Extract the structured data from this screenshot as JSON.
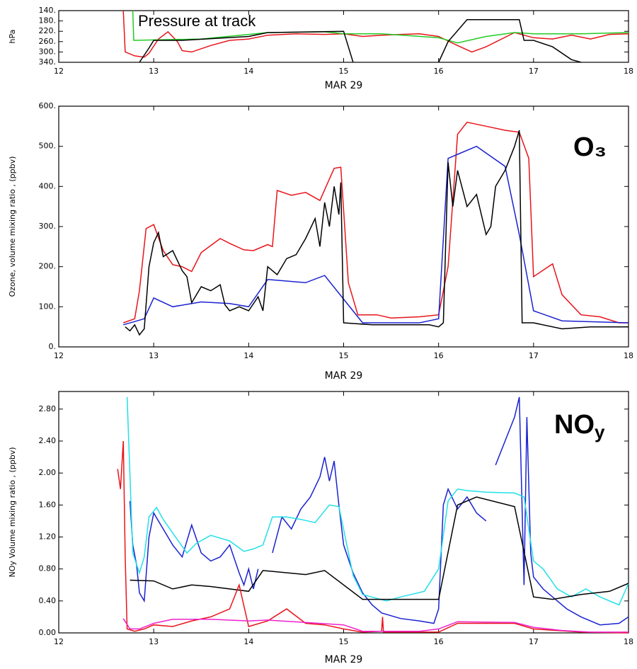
{
  "chart_data": [
    {
      "type": "line",
      "ylabel": "hPa",
      "xlabel": "MAR 29",
      "annotation": "Pressure at track",
      "xlim": [
        12,
        18
      ],
      "xticks": [
        12,
        13,
        14,
        15,
        16,
        17,
        18
      ],
      "ylim": [
        340,
        140
      ],
      "yticks": [
        {
          "value": 140,
          "label": "140."
        },
        {
          "value": 180,
          "label": "180."
        },
        {
          "value": 220,
          "label": "220."
        },
        {
          "value": 260,
          "label": "260."
        },
        {
          "value": 300,
          "label": "300."
        },
        {
          "value": 340,
          "label": "340."
        }
      ],
      "series": [
        {
          "color": "#e8141a",
          "x": [
            12.68,
            12.7,
            12.8,
            12.9,
            12.95,
            13.05,
            13.15,
            13.25,
            13.3,
            13.4,
            13.6,
            13.8,
            14.0,
            14.2,
            14.5,
            14.8,
            15.0,
            15.2,
            15.4,
            15.6,
            15.8,
            16.0,
            16.2,
            16.35,
            16.5,
            16.8,
            17.0,
            17.2,
            17.4,
            17.6,
            17.8,
            18.0
          ],
          "values": [
            140,
            300,
            315,
            320,
            305,
            250,
            222,
            260,
            295,
            300,
            275,
            255,
            250,
            235,
            230,
            232,
            230,
            240,
            235,
            232,
            230,
            240,
            275,
            300,
            280,
            225,
            245,
            250,
            235,
            250,
            232,
            230
          ]
        },
        {
          "color": "#22cc22",
          "x": [
            12.78,
            12.79,
            13.5,
            14.2,
            14.8,
            15.0,
            15.4,
            16.0,
            16.2,
            16.5,
            16.8,
            17.0,
            17.5,
            18.0
          ],
          "values": [
            140,
            255,
            250,
            225,
            222,
            230,
            230,
            245,
            265,
            240,
            225,
            230,
            230,
            225
          ]
        },
        {
          "color": "#000000",
          "x": [
            12.85,
            12.95,
            13.0,
            13.3,
            14.0,
            14.2,
            15.0,
            15.1,
            15.5,
            16.0,
            16.1,
            16.3,
            16.85,
            16.9,
            17.0,
            17.2,
            17.4,
            17.5
          ],
          "values": [
            340,
            285,
            255,
            255,
            240,
            225,
            220,
            340,
            null,
            340,
            260,
            175,
            175,
            255,
            255,
            280,
            330,
            340
          ]
        }
      ]
    },
    {
      "type": "line",
      "ylabel": "Ozone, volume mixing ratio , (ppbv)",
      "xlabel": "MAR 29",
      "annotation": "O₃",
      "xlim": [
        12,
        18
      ],
      "xticks": [
        12,
        13,
        14,
        15,
        16,
        17,
        18
      ],
      "ylim": [
        0,
        600
      ],
      "yticks": [
        {
          "value": 0,
          "label": "0."
        },
        {
          "value": 100,
          "label": "100."
        },
        {
          "value": 200,
          "label": "200."
        },
        {
          "value": 300,
          "label": "300."
        },
        {
          "value": 400,
          "label": "400."
        },
        {
          "value": 500,
          "label": "500."
        },
        {
          "value": 600,
          "label": "600."
        }
      ],
      "series": [
        {
          "color": "#e8141a",
          "x": [
            12.68,
            12.8,
            12.85,
            12.92,
            13.0,
            13.1,
            13.2,
            13.3,
            13.4,
            13.5,
            13.7,
            13.8,
            13.95,
            14.05,
            14.2,
            14.25,
            14.3,
            14.45,
            14.6,
            14.75,
            14.9,
            14.97,
            15.05,
            15.15,
            15.35,
            15.5,
            15.8,
            16.0,
            16.1,
            16.2,
            16.3,
            16.5,
            16.7,
            16.85,
            16.95,
            17.0,
            17.2,
            17.3,
            17.5,
            17.7,
            17.9,
            18.0
          ],
          "values": [
            60,
            70,
            140,
            295,
            305,
            240,
            205,
            200,
            188,
            235,
            270,
            258,
            242,
            240,
            255,
            250,
            390,
            378,
            385,
            365,
            445,
            448,
            160,
            80,
            80,
            72,
            75,
            80,
            200,
            530,
            560,
            550,
            540,
            535,
            470,
            175,
            207,
            130,
            80,
            75,
            60,
            60
          ]
        },
        {
          "color": "#1a22d0",
          "x": [
            12.68,
            12.9,
            13.0,
            13.2,
            13.5,
            13.8,
            14.0,
            14.2,
            14.6,
            14.8,
            15.2,
            15.8,
            16.0,
            16.1,
            16.2,
            16.4,
            16.7,
            16.85,
            17.0,
            17.3,
            18.0
          ],
          "values": [
            55,
            70,
            122,
            100,
            112,
            108,
            100,
            168,
            160,
            178,
            60,
            60,
            70,
            470,
            480,
            500,
            450,
            280,
            90,
            65,
            60
          ]
        },
        {
          "color": "#000000",
          "x": [
            12.7,
            12.75,
            12.8,
            12.85,
            12.9,
            12.95,
            13.0,
            13.05,
            13.1,
            13.2,
            13.3,
            13.35,
            13.4,
            13.5,
            13.6,
            13.7,
            13.75,
            13.8,
            13.9,
            14.0,
            14.1,
            14.15,
            14.2,
            14.3,
            14.4,
            14.5,
            14.6,
            14.7,
            14.75,
            14.8,
            14.85,
            14.9,
            14.95,
            14.97,
            15.0,
            15.3,
            15.6,
            15.9,
            16.0,
            16.05,
            16.1,
            16.15,
            16.2,
            16.3,
            16.4,
            16.5,
            16.55,
            16.6,
            16.7,
            16.8,
            16.85,
            16.88,
            17.0,
            17.3,
            17.6,
            18.0
          ],
          "values": [
            50,
            40,
            55,
            30,
            45,
            200,
            260,
            285,
            225,
            240,
            190,
            175,
            110,
            150,
            140,
            155,
            105,
            90,
            100,
            90,
            125,
            90,
            200,
            180,
            220,
            230,
            270,
            320,
            250,
            360,
            300,
            400,
            330,
            410,
            60,
            55,
            55,
            55,
            50,
            60,
            460,
            350,
            440,
            350,
            380,
            280,
            300,
            400,
            440,
            500,
            540,
            60,
            60,
            45,
            50,
            50
          ]
        }
      ]
    },
    {
      "type": "line",
      "ylabel": "NOy Volume mixing ratio , (ppbv)",
      "xlabel": "MAR 29",
      "annotation": {
        "text": "NO",
        "subscript": "y"
      },
      "xlim": [
        12,
        18
      ],
      "xticks": [
        12,
        13,
        14,
        15,
        16,
        17,
        18
      ],
      "ylim": [
        0,
        3.02
      ],
      "yticks": [
        {
          "value": 0,
          "label": "0.00"
        },
        {
          "value": 0.4,
          "label": "0.40"
        },
        {
          "value": 0.8,
          "label": "0.80"
        },
        {
          "value": 1.2,
          "label": "1.20"
        },
        {
          "value": 1.6,
          "label": "1.60"
        },
        {
          "value": 2,
          "label": "2.00"
        },
        {
          "value": 2.4,
          "label": "2.40"
        },
        {
          "value": 2.8,
          "label": "2.80"
        }
      ],
      "series": [
        {
          "color": "#1a22d0",
          "x": [
            12.75,
            12.78,
            12.82,
            12.85,
            12.9,
            12.95,
            13.0,
            13.1,
            13.2,
            13.3,
            13.4,
            13.5,
            13.6,
            13.7,
            13.8,
            13.9,
            13.95,
            14.0,
            14.05,
            14.1,
            14.18,
            14.25,
            14.35,
            14.45,
            14.55,
            14.65,
            14.75,
            14.8,
            14.85,
            14.9,
            14.95,
            15.0,
            15.1,
            15.2,
            15.3,
            15.4,
            15.6,
            15.8,
            15.95,
            16.0,
            16.05,
            16.1,
            16.2,
            16.3,
            16.4,
            16.5,
            16.55,
            16.6,
            16.7,
            16.8,
            16.85,
            16.9,
            16.93,
            16.97,
            17.0,
            17.1,
            17.2,
            17.35,
            17.5,
            17.7,
            17.9,
            18.0
          ],
          "values": [
            1.65,
            1.1,
            0.85,
            0.5,
            0.4,
            1.2,
            1.5,
            1.3,
            1.1,
            0.95,
            1.35,
            1.0,
            0.9,
            0.95,
            1.1,
            0.75,
            0.6,
            0.8,
            0.55,
            0.8,
            null,
            1.0,
            1.45,
            1.3,
            1.55,
            1.7,
            1.95,
            2.2,
            1.9,
            2.15,
            1.6,
            1.1,
            0.75,
            0.5,
            0.35,
            0.25,
            0.18,
            0.15,
            0.12,
            0.3,
            1.6,
            1.8,
            1.55,
            1.7,
            1.5,
            1.4,
            null,
            2.1,
            2.4,
            2.7,
            2.95,
            0.6,
            2.7,
            1.0,
            0.7,
            0.55,
            0.45,
            0.3,
            0.2,
            0.1,
            0.12,
            0.2
          ]
        },
        {
          "color": "#22e0e8",
          "x": [
            12.72,
            12.78,
            12.85,
            12.9,
            12.95,
            13.03,
            13.1,
            13.2,
            13.35,
            13.45,
            13.6,
            13.8,
            13.95,
            14.05,
            14.15,
            14.25,
            14.4,
            14.55,
            14.7,
            14.85,
            14.95,
            15.1,
            15.2,
            15.45,
            15.6,
            15.85,
            16.0,
            16.1,
            16.2,
            16.3,
            16.5,
            16.8,
            16.9,
            17.0,
            17.1,
            17.25,
            17.4,
            17.55,
            17.7,
            17.9,
            18.0
          ],
          "values": [
            2.95,
            1.0,
            0.75,
            0.95,
            1.45,
            1.57,
            1.42,
            1.25,
            1.0,
            1.12,
            1.22,
            1.15,
            1.02,
            1.05,
            1.1,
            1.45,
            1.45,
            1.42,
            1.38,
            1.6,
            1.58,
            0.72,
            0.48,
            0.4,
            0.45,
            0.52,
            0.8,
            1.65,
            1.8,
            1.78,
            1.76,
            1.75,
            1.7,
            0.9,
            0.8,
            0.55,
            0.45,
            0.55,
            0.45,
            0.35,
            0.62
          ]
        },
        {
          "color": "#000000",
          "x": [
            12.75,
            13.0,
            13.2,
            13.4,
            13.6,
            14.0,
            14.15,
            14.6,
            14.8,
            15.2,
            16.0,
            16.2,
            16.4,
            16.8,
            17.0,
            17.2,
            17.5,
            17.8,
            18.0
          ],
          "values": [
            0.66,
            0.65,
            0.55,
            0.6,
            0.58,
            0.52,
            0.78,
            0.73,
            0.78,
            0.42,
            0.42,
            1.6,
            1.7,
            1.58,
            0.45,
            0.42,
            0.48,
            0.52,
            0.62
          ]
        },
        {
          "color": "#e8141a",
          "x": [
            12.62,
            12.65,
            12.68,
            12.7,
            12.72,
            12.8,
            12.9,
            13.0,
            13.2,
            13.4,
            13.6,
            13.8,
            13.9,
            14.0,
            14.2,
            14.4,
            14.6,
            14.8,
            15.0,
            15.2,
            15.4,
            15.41,
            15.42,
            16.0,
            16.2,
            16.8,
            17.0,
            17.5,
            18.0
          ],
          "values": [
            2.05,
            1.8,
            2.4,
            0.95,
            0.05,
            0.02,
            0.05,
            0.1,
            0.08,
            0.15,
            0.2,
            0.3,
            0.6,
            0.08,
            0.15,
            0.3,
            0.12,
            0.1,
            0.05,
            0.01,
            0.02,
            0.2,
            0.01,
            0.01,
            0.12,
            0.12,
            0.05,
            0.01,
            0
          ]
        },
        {
          "color": "#ee22cc",
          "x": [
            12.68,
            12.75,
            12.85,
            13.0,
            13.2,
            13.6,
            14.0,
            14.2,
            14.6,
            15.0,
            15.2,
            15.8,
            16.0,
            16.2,
            16.8,
            17.0,
            17.3,
            17.6,
            18.0
          ],
          "values": [
            0.18,
            0.05,
            0.05,
            0.12,
            0.17,
            0.17,
            0.15,
            0.16,
            0.13,
            0.1,
            0.02,
            0.02,
            0.05,
            0.14,
            0.13,
            0.07,
            0.03,
            0.01,
            0.01
          ]
        }
      ]
    }
  ]
}
